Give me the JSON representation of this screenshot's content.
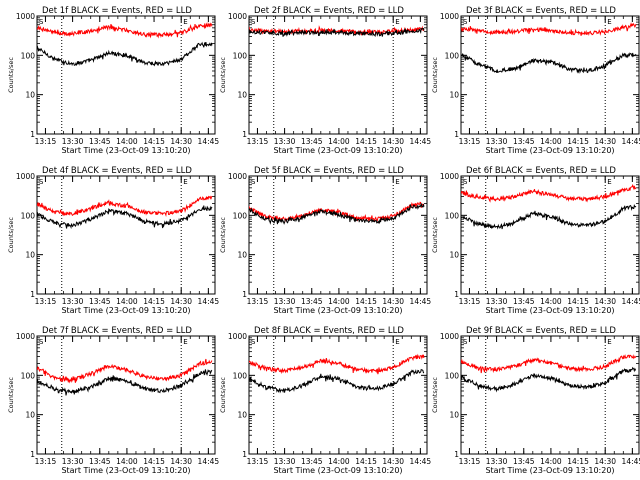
{
  "chart_data": [
    {
      "type": "line",
      "title": "Det 1f BLACK = Events, RED = LLD",
      "xlabel": "Start Time (23-Oct-09 13:10:20)",
      "ylabel": "Counts/sec",
      "yscale": "log",
      "ylim": [
        1,
        1000
      ],
      "xlim": [
        "13:10:20",
        "14:48:40"
      ],
      "x_ticks": [
        "13:15",
        "13:30",
        "13:45",
        "14:00",
        "14:15",
        "14:30",
        "14:45"
      ],
      "y_ticks": [
        "1",
        "10",
        "100",
        "1000"
      ],
      "vlines": [
        "13:24",
        "14:30"
      ],
      "markers": [
        "S",
        "E"
      ],
      "grid": false,
      "series": [
        {
          "color": "#000000",
          "x": [
            "13:10",
            "13:20",
            "13:30",
            "13:40",
            "13:50",
            "14:00",
            "14:10",
            "14:20",
            "14:30",
            "14:40",
            "14:47"
          ],
          "values": [
            160,
            80,
            60,
            75,
            115,
            100,
            65,
            60,
            80,
            190,
            200
          ]
        },
        {
          "color": "#ff0000",
          "x": [
            "13:10",
            "13:20",
            "13:30",
            "13:40",
            "13:50",
            "14:00",
            "14:10",
            "14:20",
            "14:30",
            "14:40",
            "14:47"
          ],
          "values": [
            520,
            380,
            350,
            420,
            520,
            430,
            340,
            330,
            380,
            550,
            600
          ]
        }
      ]
    },
    {
      "type": "line",
      "title": "Det 2f BLACK = Events, RED = LLD",
      "xlabel": "Start Time (23-Oct-09 13:10:20)",
      "ylabel": "Counts/sec",
      "yscale": "log",
      "ylim": [
        1,
        1000
      ],
      "xlim": [
        "13:10:20",
        "14:48:40"
      ],
      "x_ticks": [
        "13:15",
        "13:30",
        "13:45",
        "14:00",
        "14:15",
        "14:30",
        "14:45"
      ],
      "y_ticks": [
        "1",
        "10",
        "100",
        "1000"
      ],
      "vlines": [
        "13:24",
        "14:30"
      ],
      "markers": [
        "S",
        "E"
      ],
      "grid": false,
      "series": [
        {
          "color": "#ff0000",
          "x": [
            "13:10",
            "13:20",
            "13:30",
            "13:40",
            "13:50",
            "14:00",
            "14:10",
            "14:20",
            "14:30",
            "14:40",
            "14:47"
          ],
          "values": [
            450,
            420,
            400,
            420,
            430,
            420,
            400,
            390,
            410,
            450,
            480
          ]
        },
        {
          "color": "#000000",
          "x": [
            "13:10",
            "13:20",
            "13:30",
            "13:40",
            "13:50",
            "14:00",
            "14:10",
            "14:20",
            "14:30",
            "14:40",
            "14:47"
          ],
          "values": [
            400,
            380,
            360,
            380,
            390,
            380,
            360,
            350,
            370,
            410,
            440
          ]
        }
      ]
    },
    {
      "type": "line",
      "title": "Det 3f BLACK = Events, RED = LLD",
      "xlabel": "Start Time (23-Oct-09 13:10:20)",
      "ylabel": "Counts/sec",
      "yscale": "log",
      "ylim": [
        1,
        1000
      ],
      "xlim": [
        "13:10:20",
        "14:48:40"
      ],
      "x_ticks": [
        "13:15",
        "13:30",
        "13:45",
        "14:00",
        "14:15",
        "14:30",
        "14:45"
      ],
      "y_ticks": [
        "1",
        "10",
        "100",
        "1000"
      ],
      "vlines": [
        "13:24",
        "14:30"
      ],
      "markers": [
        "S",
        "E"
      ],
      "grid": false,
      "series": [
        {
          "color": "#000000",
          "x": [
            "13:10",
            "13:20",
            "13:30",
            "13:40",
            "13:50",
            "14:00",
            "14:10",
            "14:20",
            "14:30",
            "14:40",
            "14:47"
          ],
          "values": [
            110,
            60,
            40,
            45,
            75,
            70,
            45,
            40,
            55,
            100,
            105
          ]
        },
        {
          "color": "#ff0000",
          "x": [
            "13:10",
            "13:20",
            "13:30",
            "13:40",
            "13:50",
            "14:00",
            "14:10",
            "14:20",
            "14:30",
            "14:40",
            "14:47"
          ],
          "values": [
            480,
            420,
            380,
            400,
            460,
            420,
            370,
            360,
            400,
            520,
            600
          ]
        }
      ]
    },
    {
      "type": "line",
      "title": "Det 4f BLACK = Events, RED = LLD",
      "xlabel": "Start Time (23-Oct-09 13:10:20)",
      "ylabel": "Counts/sec",
      "yscale": "log",
      "ylim": [
        1,
        1000
      ],
      "xlim": [
        "13:10:20",
        "14:48:40"
      ],
      "x_ticks": [
        "13:15",
        "13:30",
        "13:45",
        "14:00",
        "14:15",
        "14:30",
        "14:45"
      ],
      "y_ticks": [
        "1",
        "10",
        "100",
        "1000"
      ],
      "vlines": [
        "13:24",
        "14:30"
      ],
      "markers": [
        "S",
        "E"
      ],
      "grid": false,
      "series": [
        {
          "color": "#000000",
          "x": [
            "13:10",
            "13:20",
            "13:30",
            "13:40",
            "13:50",
            "14:00",
            "14:10",
            "14:20",
            "14:30",
            "14:40",
            "14:47"
          ],
          "values": [
            110,
            65,
            55,
            80,
            130,
            110,
            70,
            60,
            75,
            140,
            150
          ]
        },
        {
          "color": "#ff0000",
          "x": [
            "13:10",
            "13:20",
            "13:30",
            "13:40",
            "13:50",
            "14:00",
            "14:10",
            "14:20",
            "14:30",
            "14:40",
            "14:47"
          ],
          "values": [
            200,
            120,
            110,
            150,
            210,
            170,
            120,
            110,
            130,
            260,
            280
          ]
        }
      ]
    },
    {
      "type": "line",
      "title": "Det 5f BLACK = Events, RED = LLD",
      "xlabel": "Start Time (23-Oct-09 13:10:20)",
      "ylabel": "Counts/sec",
      "yscale": "log",
      "ylim": [
        1,
        1000
      ],
      "xlim": [
        "13:10:20",
        "14:48:40"
      ],
      "x_ticks": [
        "13:15",
        "13:30",
        "13:45",
        "14:00",
        "14:15",
        "14:30",
        "14:45"
      ],
      "y_ticks": [
        "1",
        "10",
        "100",
        "1000"
      ],
      "vlines": [
        "13:24",
        "14:30"
      ],
      "markers": [
        "S",
        "E"
      ],
      "grid": false,
      "series": [
        {
          "color": "#ff0000",
          "x": [
            "13:10",
            "13:20",
            "13:30",
            "13:40",
            "13:50",
            "14:00",
            "14:10",
            "14:20",
            "14:30",
            "14:40",
            "14:47"
          ],
          "values": [
            160,
            90,
            80,
            100,
            140,
            120,
            85,
            80,
            95,
            180,
            200
          ]
        },
        {
          "color": "#000000",
          "x": [
            "13:10",
            "13:20",
            "13:30",
            "13:40",
            "13:50",
            "14:00",
            "14:10",
            "14:20",
            "14:30",
            "14:40",
            "14:47"
          ],
          "values": [
            140,
            80,
            70,
            90,
            125,
            105,
            75,
            70,
            85,
            160,
            175
          ]
        }
      ]
    },
    {
      "type": "line",
      "title": "Det 6f BLACK = Events, RED = LLD",
      "xlabel": "Start Time (23-Oct-09 13:10:20)",
      "ylabel": "Counts/sec",
      "yscale": "log",
      "ylim": [
        1,
        1000
      ],
      "xlim": [
        "13:10:20",
        "14:48:40"
      ],
      "x_ticks": [
        "13:15",
        "13:30",
        "13:45",
        "14:00",
        "14:15",
        "14:30",
        "14:45"
      ],
      "y_ticks": [
        "1",
        "10",
        "100",
        "1000"
      ],
      "vlines": [
        "13:24",
        "14:30"
      ],
      "markers": [
        "S",
        "E"
      ],
      "grid": false,
      "series": [
        {
          "color": "#000000",
          "x": [
            "13:10",
            "13:20",
            "13:30",
            "13:40",
            "13:50",
            "14:00",
            "14:10",
            "14:20",
            "14:30",
            "14:40",
            "14:47"
          ],
          "values": [
            100,
            60,
            50,
            65,
            110,
            95,
            60,
            55,
            70,
            150,
            170
          ]
        },
        {
          "color": "#ff0000",
          "x": [
            "13:10",
            "13:20",
            "13:30",
            "13:40",
            "13:50",
            "14:00",
            "14:10",
            "14:20",
            "14:30",
            "14:40",
            "14:47"
          ],
          "values": [
            380,
            280,
            260,
            300,
            400,
            340,
            270,
            260,
            300,
            450,
            500
          ]
        }
      ]
    },
    {
      "type": "line",
      "title": "Det 7f BLACK = Events, RED = LLD",
      "xlabel": "Start Time (23-Oct-09 13:10:20)",
      "ylabel": "Counts/sec",
      "yscale": "log",
      "ylim": [
        1,
        1000
      ],
      "xlim": [
        "13:10:20",
        "14:48:40"
      ],
      "x_ticks": [
        "13:15",
        "13:30",
        "13:45",
        "14:00",
        "14:15",
        "14:30",
        "14:45"
      ],
      "y_ticks": [
        "1",
        "10",
        "100",
        "1000"
      ],
      "vlines": [
        "13:24",
        "14:30"
      ],
      "markers": [
        "S",
        "E"
      ],
      "grid": false,
      "series": [
        {
          "color": "#000000",
          "x": [
            "13:10",
            "13:20",
            "13:30",
            "13:40",
            "13:50",
            "14:00",
            "14:10",
            "14:20",
            "14:30",
            "14:40",
            "14:47"
          ],
          "values": [
            75,
            45,
            38,
            50,
            85,
            70,
            45,
            40,
            55,
            110,
            120
          ]
        },
        {
          "color": "#ff0000",
          "x": [
            "13:10",
            "13:20",
            "13:30",
            "13:40",
            "13:50",
            "14:00",
            "14:10",
            "14:20",
            "14:30",
            "14:40",
            "14:47"
          ],
          "values": [
            160,
            85,
            75,
            110,
            170,
            140,
            90,
            80,
            100,
            200,
            220
          ]
        }
      ]
    },
    {
      "type": "line",
      "title": "Det 8f BLACK = Events, RED = LLD",
      "xlabel": "Start Time (23-Oct-09 13:10:20)",
      "ylabel": "Counts/sec",
      "yscale": "log",
      "ylim": [
        1,
        1000
      ],
      "xlim": [
        "13:10:20",
        "14:48:40"
      ],
      "x_ticks": [
        "13:15",
        "13:30",
        "13:45",
        "14:00",
        "14:15",
        "14:30",
        "14:45"
      ],
      "y_ticks": [
        "1",
        "10",
        "100",
        "1000"
      ],
      "vlines": [
        "13:24",
        "14:30"
      ],
      "markers": [
        "S",
        "E"
      ],
      "grid": false,
      "series": [
        {
          "color": "#000000",
          "x": [
            "13:10",
            "13:20",
            "13:30",
            "13:40",
            "13:50",
            "14:00",
            "14:10",
            "14:20",
            "14:30",
            "14:40",
            "14:47"
          ],
          "values": [
            85,
            50,
            40,
            55,
            95,
            80,
            50,
            45,
            60,
            120,
            130
          ]
        },
        {
          "color": "#ff0000",
          "x": [
            "13:10",
            "13:20",
            "13:30",
            "13:40",
            "13:50",
            "14:00",
            "14:10",
            "14:20",
            "14:30",
            "14:40",
            "14:47"
          ],
          "values": [
            220,
            150,
            130,
            160,
            240,
            200,
            140,
            130,
            160,
            280,
            300
          ]
        }
      ]
    },
    {
      "type": "line",
      "title": "Det 9f BLACK = Events, RED = LLD",
      "xlabel": "Start Time (23-Oct-09 13:10:20)",
      "ylabel": "Counts/sec",
      "yscale": "log",
      "ylim": [
        1,
        1000
      ],
      "xlim": [
        "13:10:20",
        "14:48:40"
      ],
      "x_ticks": [
        "13:15",
        "13:30",
        "13:45",
        "14:00",
        "14:15",
        "14:30",
        "14:45"
      ],
      "y_ticks": [
        "1",
        "10",
        "100",
        "1000"
      ],
      "vlines": [
        "13:24",
        "14:30"
      ],
      "markers": [
        "S",
        "E"
      ],
      "grid": false,
      "series": [
        {
          "color": "#000000",
          "x": [
            "13:10",
            "13:20",
            "13:30",
            "13:40",
            "13:50",
            "14:00",
            "14:10",
            "14:20",
            "14:30",
            "14:40",
            "14:47"
          ],
          "values": [
            90,
            55,
            45,
            60,
            100,
            85,
            55,
            50,
            65,
            130,
            140
          ]
        },
        {
          "color": "#ff0000",
          "x": [
            "13:10",
            "13:20",
            "13:30",
            "13:40",
            "13:50",
            "14:00",
            "14:10",
            "14:20",
            "14:30",
            "14:40",
            "14:47"
          ],
          "values": [
            220,
            150,
            140,
            170,
            250,
            210,
            150,
            140,
            170,
            290,
            300
          ]
        }
      ]
    }
  ]
}
